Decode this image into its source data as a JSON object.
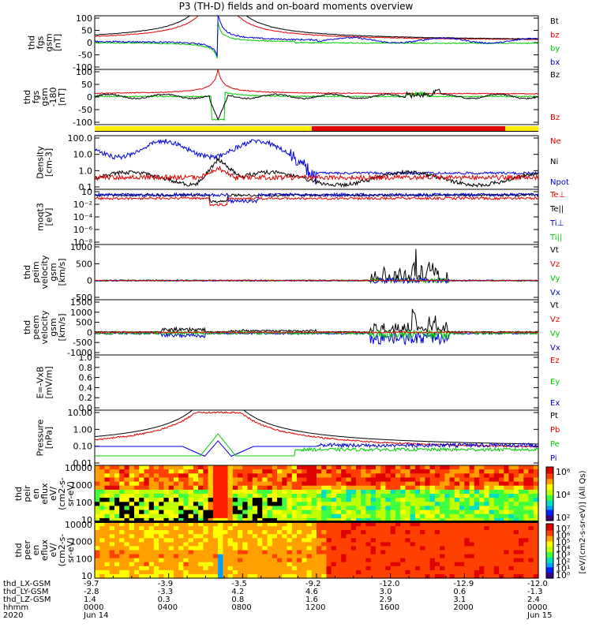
{
  "title": "P3 (TH-D) fields and on-board moments overview",
  "colors": {
    "black": "#000000",
    "red": "#e00000",
    "green": "#00cc00",
    "blue": "#0000dd",
    "yellow": "#ffee00",
    "bar_red": "#e00000"
  },
  "chart_data": [
    {
      "type": "line",
      "ylabel": [
        "thd",
        "fgs",
        "gsm",
        "[nT]"
      ],
      "ylim": [
        -100,
        100
      ],
      "yticks": [
        "100",
        "50",
        "0",
        "-50",
        "-100"
      ],
      "legend": [
        {
          "name": "Bt",
          "color": "#000000"
        },
        {
          "name": "bz",
          "color": "#e00000"
        },
        {
          "name": "by",
          "color": "#00cc00"
        },
        {
          "name": "bx",
          "color": "#0000dd"
        }
      ]
    },
    {
      "type": "line",
      "ylabel": [
        "thd",
        "fgs",
        "gsm",
        "-180",
        "[nT]"
      ],
      "ylim": [
        -120,
        120
      ],
      "yticks": [
        "100",
        "50",
        "0",
        "-50",
        "-100"
      ],
      "legend": [
        {
          "name": "Bz",
          "color": "#000000"
        },
        {
          "name": "Bz",
          "color": "#e00000"
        }
      ]
    },
    {
      "type": "line",
      "ylabel": [
        "Density",
        "[cm-3]"
      ],
      "yscale": "log",
      "yticks": [
        "100.0",
        "10.0",
        "1.0",
        "0.1"
      ],
      "legend": [
        {
          "name": "Ne",
          "color": "#e00000"
        },
        {
          "name": "Ni",
          "color": "#000000"
        },
        {
          "name": "Npot",
          "color": "#0000dd"
        }
      ]
    },
    {
      "type": "line",
      "ylabel": [
        "moqt3",
        "[eV]"
      ],
      "yscale": "log",
      "yticks": [
        "10",
        "10⁻²",
        "10⁻⁴",
        "10⁻⁶",
        "10⁻⁸"
      ],
      "legend": [
        {
          "name": "Te⊥",
          "color": "#e00000"
        },
        {
          "name": "Te||",
          "color": "#000000"
        },
        {
          "name": "Ti⊥",
          "color": "#0000dd"
        },
        {
          "name": "Ti||",
          "color": "#00cc00"
        }
      ]
    },
    {
      "type": "line",
      "ylabel": [
        "thd",
        "peim",
        "velocity",
        "gsm",
        "[km/s]"
      ],
      "ylim": [
        -500,
        1500
      ],
      "yticks": [
        "1000",
        "500",
        "0",
        "-500"
      ],
      "legend": [
        {
          "name": "Vt",
          "color": "#000000"
        },
        {
          "name": "Vz",
          "color": "#e00000"
        },
        {
          "name": "Vy",
          "color": "#00cc00"
        },
        {
          "name": "Vx",
          "color": "#0000dd"
        }
      ]
    },
    {
      "type": "line",
      "ylabel": [
        "thd",
        "peem",
        "velocity",
        "gsm",
        "[km/s]"
      ],
      "ylim": [
        -1000,
        1500
      ],
      "yticks": [
        "1500",
        "1000",
        "500",
        "0",
        "-500",
        "-1000"
      ],
      "legend": [
        {
          "name": "Vt",
          "color": "#000000"
        },
        {
          "name": "Vz",
          "color": "#e00000"
        },
        {
          "name": "Vy",
          "color": "#00cc00"
        },
        {
          "name": "Vx",
          "color": "#0000dd"
        }
      ]
    },
    {
      "type": "line",
      "ylabel": [
        "E=-VxB",
        "[mV/m]"
      ],
      "ylim": [
        0,
        1
      ],
      "yticks": [
        "1.0",
        "0.8",
        "0.6",
        "0.4",
        "0.2",
        "0.0"
      ],
      "legend": [
        {
          "name": "Ez",
          "color": "#e00000"
        },
        {
          "name": "Ey",
          "color": "#00cc00"
        },
        {
          "name": "Ex",
          "color": "#0000dd"
        }
      ]
    },
    {
      "type": "line",
      "ylabel": [
        "Pressure",
        "[nPa]"
      ],
      "yscale": "log",
      "yticks": [
        "10.00",
        "1.00",
        "0.10",
        "0.01"
      ],
      "legend": [
        {
          "name": "Pt",
          "color": "#000000"
        },
        {
          "name": "Pb",
          "color": "#e00000"
        },
        {
          "name": "Pe",
          "color": "#00cc00"
        },
        {
          "name": "Pi",
          "color": "#0000dd"
        }
      ]
    },
    {
      "type": "heatmap",
      "ylabel": [
        "thd",
        "peir",
        "en",
        "eflux",
        "eV/",
        "(cm2-s-",
        "sr-eV)"
      ],
      "yscale": "log",
      "yticks": [
        "10000",
        "1000",
        "100",
        "10"
      ],
      "colorbar_ticks": [
        "10⁶",
        "10⁴",
        "10²"
      ]
    },
    {
      "type": "heatmap",
      "ylabel": [
        "thd",
        "peer",
        "en",
        "eflux",
        "eV/",
        "(cm2-s-",
        "sr-eV)"
      ],
      "yscale": "log",
      "yticks": [
        "10000",
        "1000",
        "100",
        "10"
      ],
      "colorbar_ticks": [
        "10⁷",
        "10⁶",
        "10⁵",
        "10⁴",
        "10³",
        "10²",
        "10¹",
        "10⁰"
      ]
    }
  ],
  "colorbar_label": "[eV/(cm2-s-sr-eV)] (All Qs)",
  "footer": {
    "labels": [
      "thd_LX-GSM",
      "thd_LY-GSM",
      "thd_LZ-GSM",
      "hhmm",
      "2020"
    ],
    "columns": [
      [
        "-9.7",
        "-2.8",
        "1.4",
        "0000",
        "Jun 14"
      ],
      [
        "-3.9",
        "-3.3",
        "0.3",
        "0400",
        ""
      ],
      [
        "-3.5",
        "4.2",
        "0.8",
        "0800",
        ""
      ],
      [
        "-9.2",
        "4.6",
        "1.6",
        "1200",
        ""
      ],
      [
        "-12.0",
        "3.0",
        "2.9",
        "1600",
        ""
      ],
      [
        "-12.9",
        "0.6",
        "3.1",
        "2000",
        ""
      ],
      [
        "-12.0",
        "-1.3",
        "2.4",
        "0000",
        "Jun 15"
      ]
    ]
  }
}
